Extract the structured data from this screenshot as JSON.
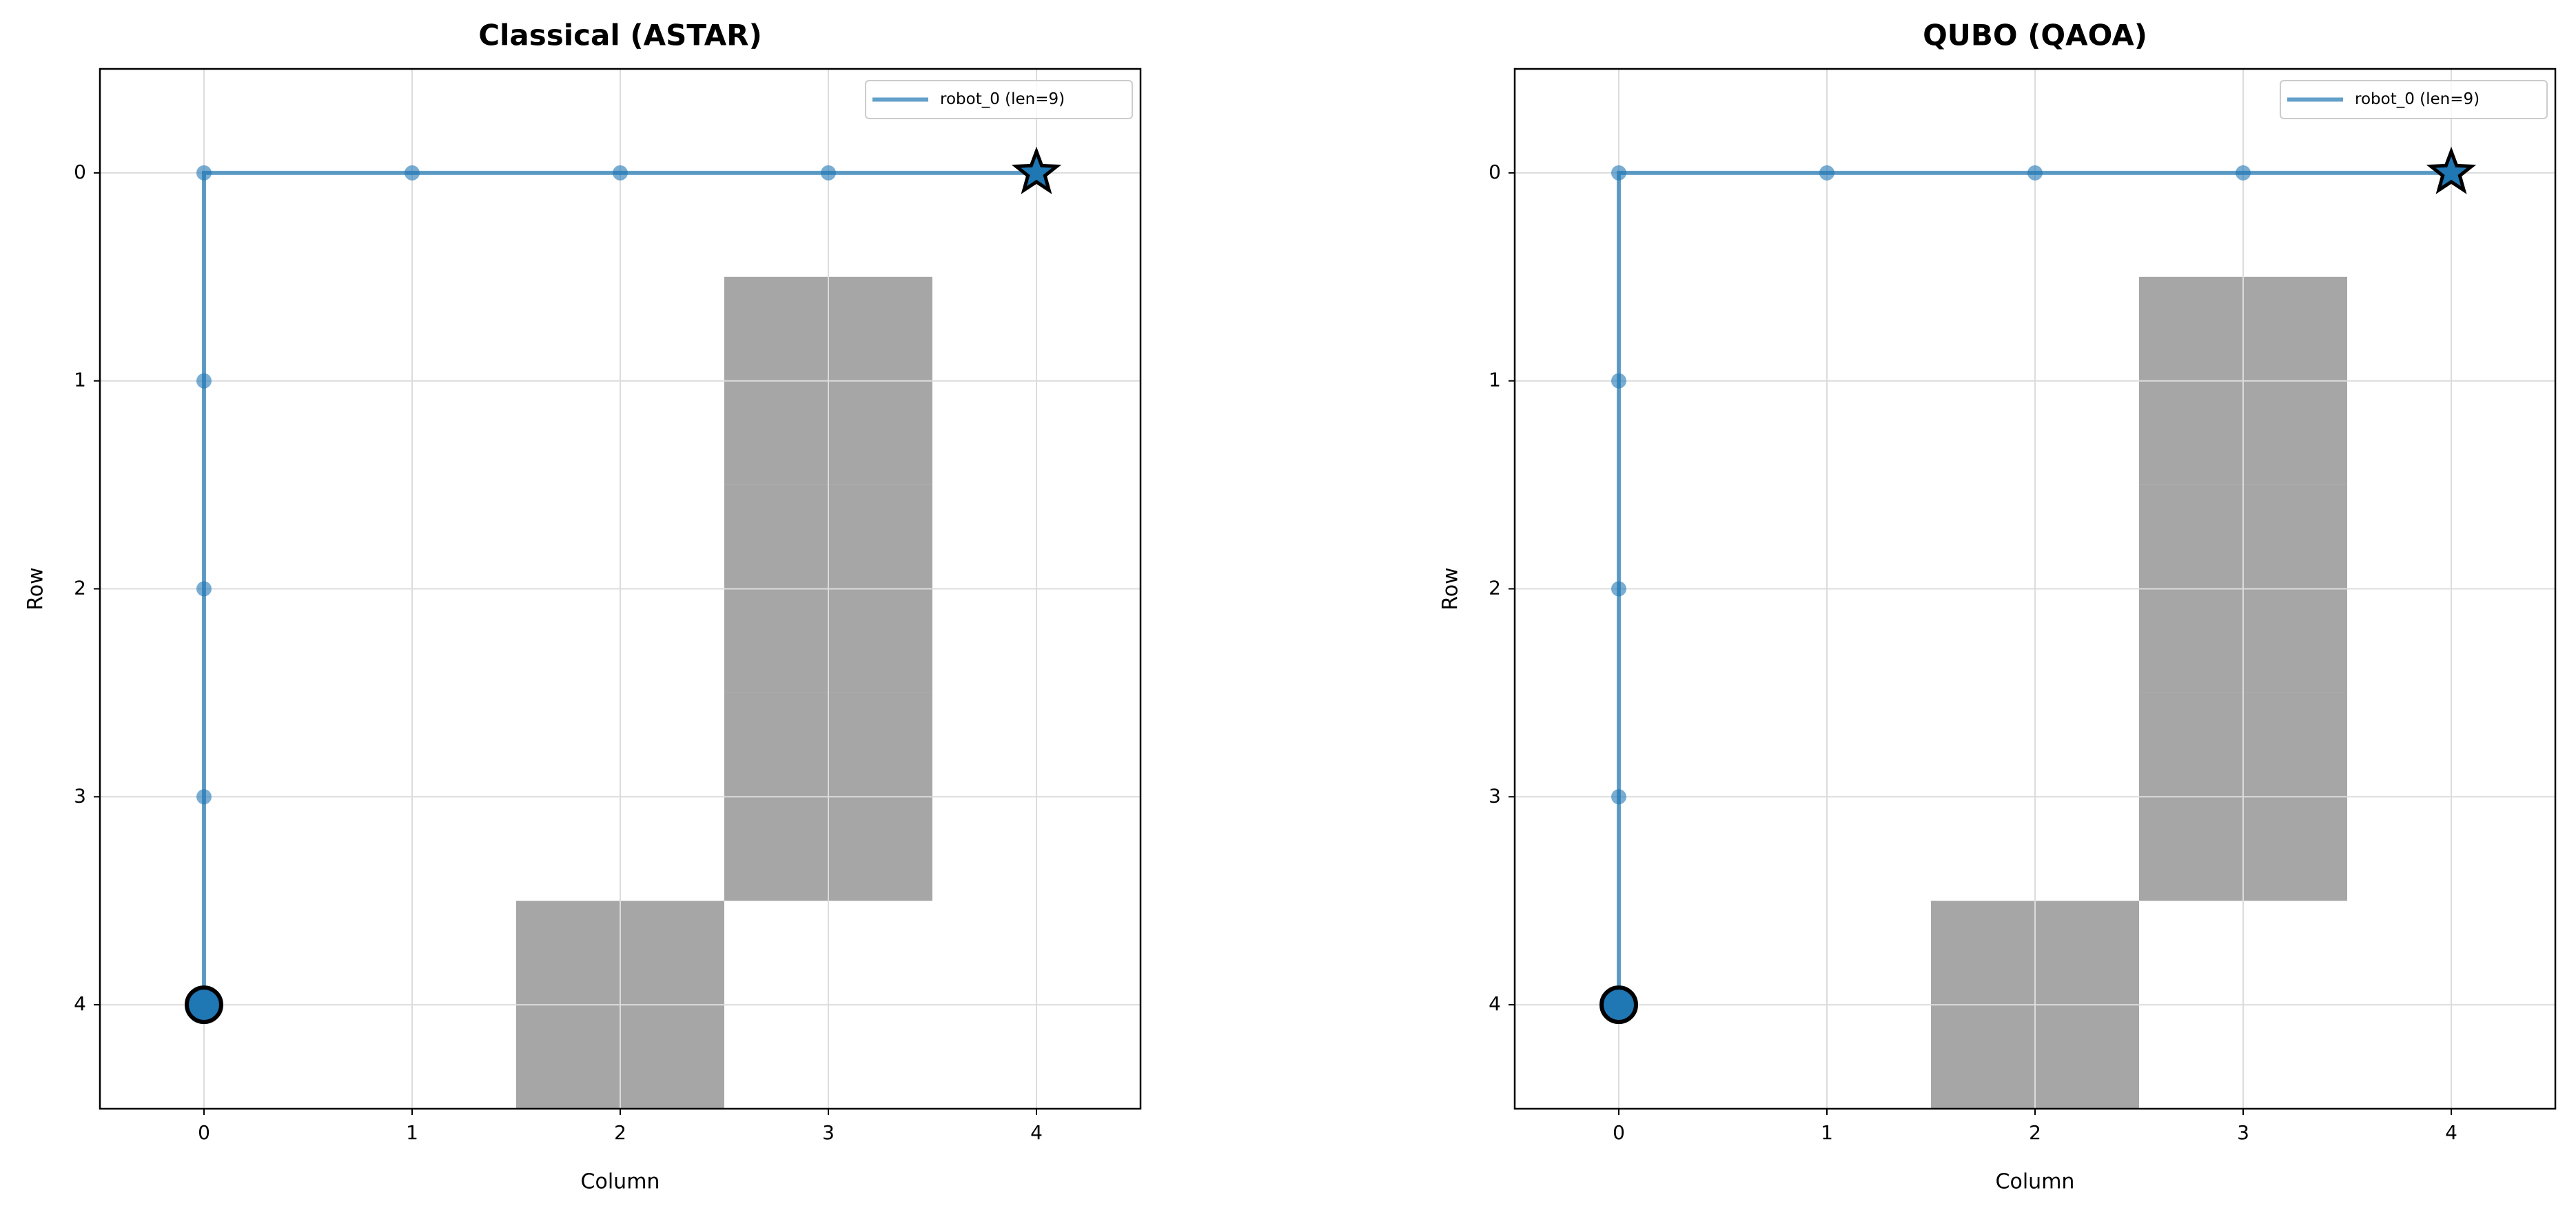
{
  "chart_data": [
    {
      "type": "line",
      "title": "Classical (ASTAR)",
      "xlabel": "Column",
      "ylabel": "Row",
      "xlim": [
        -0.5,
        4.5
      ],
      "ylim": [
        4.5,
        -0.5
      ],
      "xticks": [
        0,
        1,
        2,
        3,
        4
      ],
      "yticks": [
        0,
        1,
        2,
        3,
        4
      ],
      "grid": true,
      "legend": "upper right",
      "obstacles": {
        "color": "#a6a6a6",
        "x": [
          2,
          3,
          3,
          3
        ],
        "y": [
          4,
          1,
          2,
          3
        ]
      },
      "series": [
        {
          "name": "robot_0 (len=9)",
          "color": "#1f77b4",
          "x": [
            0,
            0,
            0,
            0,
            0,
            1,
            2,
            3,
            4
          ],
          "values": [
            4,
            3,
            2,
            1,
            0,
            0,
            0,
            0,
            0
          ]
        }
      ]
    },
    {
      "type": "line",
      "title": "QUBO (QAOA)",
      "xlabel": "Column",
      "ylabel": "Row",
      "xlim": [
        -0.5,
        4.5
      ],
      "ylim": [
        4.5,
        -0.5
      ],
      "xticks": [
        0,
        1,
        2,
        3,
        4
      ],
      "yticks": [
        0,
        1,
        2,
        3,
        4
      ],
      "grid": true,
      "legend": "upper right",
      "obstacles": {
        "color": "#a6a6a6",
        "x": [
          2,
          3,
          3,
          3
        ],
        "y": [
          4,
          1,
          2,
          3
        ]
      },
      "series": [
        {
          "name": "robot_0 (len=9)",
          "color": "#1f77b4",
          "x": [
            0,
            0,
            0,
            0,
            0,
            1,
            2,
            3,
            4
          ],
          "values": [
            4,
            3,
            2,
            1,
            0,
            0,
            0,
            0,
            0
          ]
        }
      ]
    }
  ]
}
